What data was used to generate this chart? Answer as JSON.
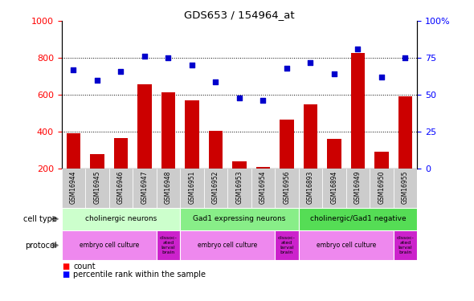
{
  "title": "GDS653 / 154964_at",
  "samples": [
    "GSM16944",
    "GSM16945",
    "GSM16946",
    "GSM16947",
    "GSM16948",
    "GSM16951",
    "GSM16952",
    "GSM16953",
    "GSM16954",
    "GSM16956",
    "GSM16893",
    "GSM16894",
    "GSM16949",
    "GSM16950",
    "GSM16955"
  ],
  "counts": [
    390,
    280,
    365,
    655,
    615,
    570,
    405,
    240,
    210,
    465,
    548,
    363,
    825,
    292,
    590
  ],
  "percentiles": [
    67,
    60,
    66,
    76,
    75,
    70,
    59,
    48,
    46,
    68,
    72,
    64,
    81,
    62,
    75
  ],
  "cell_types": [
    {
      "label": "cholinergic neurons",
      "start": 0,
      "end": 4,
      "color": "#ccffcc"
    },
    {
      "label": "Gad1 expressing neurons",
      "start": 5,
      "end": 9,
      "color": "#88ee88"
    },
    {
      "label": "cholinergic/Gad1 negative",
      "start": 10,
      "end": 14,
      "color": "#55dd55"
    }
  ],
  "protocols": [
    {
      "label": "embryo cell culture",
      "start": 0,
      "end": 3,
      "color": "#ee99ee"
    },
    {
      "label": "dissoc-\nated\nlarval\nbrain",
      "start": 4,
      "end": 4,
      "color": "#dd44dd"
    },
    {
      "label": "embryo cell culture",
      "start": 5,
      "end": 8,
      "color": "#ee99ee"
    },
    {
      "label": "dissoc-\nated\nlarval\nbrain",
      "start": 9,
      "end": 9,
      "color": "#dd44dd"
    },
    {
      "label": "embryo cell culture",
      "start": 10,
      "end": 13,
      "color": "#ee99ee"
    },
    {
      "label": "dissoc-\nated\nlarval\nbrain",
      "start": 14,
      "end": 14,
      "color": "#dd44dd"
    }
  ],
  "bar_color": "#cc0000",
  "dot_color": "#0000cc",
  "left_ylim": [
    200,
    1000
  ],
  "right_ylim": [
    0,
    100
  ],
  "left_yticks": [
    200,
    400,
    600,
    800,
    1000
  ],
  "right_yticks": [
    0,
    25,
    50,
    75,
    100
  ],
  "right_yticklabels": [
    "0",
    "25",
    "50",
    "75",
    "100%"
  ],
  "grid_values": [
    400,
    600,
    800
  ],
  "background_color": "#ffffff"
}
